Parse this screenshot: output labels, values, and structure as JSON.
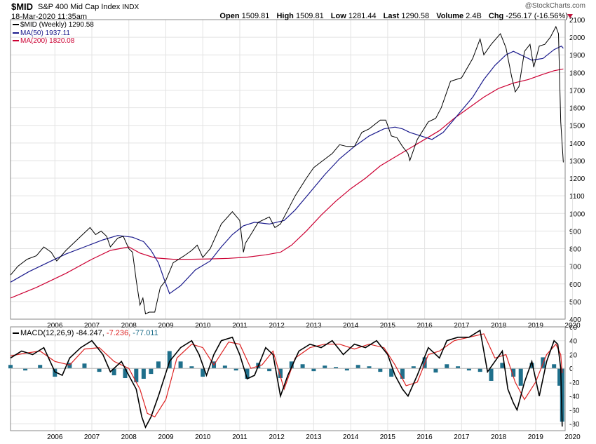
{
  "header": {
    "symbol": "$MID",
    "name": "S&P 400 Mid Cap Index",
    "exchange": "INDX",
    "date": "18-Mar-2020 11:35am",
    "brand": "@StockCharts.com",
    "open_label": "Open",
    "open": "1509.81",
    "high_label": "High",
    "high": "1509.81",
    "low_label": "Low",
    "low": "1281.44",
    "last_label": "Last",
    "last": "1290.58",
    "volume_label": "Volume",
    "volume": "2.4B",
    "chg_label": "Chg",
    "chg": "-256.17 (-16.56%)"
  },
  "legend": {
    "price": "$MID (Weekly) 1290.58",
    "ma50_label": "MA(50)",
    "ma50": "1937.11",
    "ma200_label": "MA(200)",
    "ma200": "1820.08",
    "macd_label": "MACD(12,26,9)",
    "macd_value": "-84.247,",
    "signal_value": "-7.236,",
    "hist_value": "-77.011"
  },
  "colors": {
    "price": "#000000",
    "ma50": "#1a1a8c",
    "ma200": "#cc0033",
    "macd": "#000000",
    "signal": "#dd2222",
    "hist": "#1f6f8b",
    "grid": "#e3e3e3",
    "border": "#888888"
  },
  "chart_data": [
    {
      "type": "line",
      "title": "$MID S&P 400 Mid Cap Index",
      "xlabel": "",
      "ylabel": "",
      "ylim": [
        400,
        2100
      ],
      "yticks": [
        400,
        500,
        600,
        700,
        800,
        900,
        1000,
        1100,
        1200,
        1300,
        1400,
        1500,
        1600,
        1700,
        1800,
        1900,
        2000,
        2100
      ],
      "xlim": [
        2005.3,
        2020.3
      ],
      "xticks": [
        "2006",
        "2007",
        "2008",
        "2009",
        "2010",
        "2011",
        "2012",
        "2013",
        "2014",
        "2015",
        "2016",
        "2017",
        "2018",
        "2019",
        "2020"
      ],
      "series": [
        {
          "name": "$MID (Weekly)",
          "x": [
            2005.3,
            2005.5,
            2005.75,
            2006.0,
            2006.2,
            2006.4,
            2006.55,
            2006.8,
            2007.0,
            2007.2,
            2007.45,
            2007.6,
            2007.75,
            2007.9,
            2008.0,
            2008.2,
            2008.35,
            2008.5,
            2008.6,
            2008.7,
            2008.8,
            2008.88,
            2008.95,
            2009.05,
            2009.15,
            2009.2,
            2009.35,
            2009.5,
            2009.7,
            2010.0,
            2010.2,
            2010.35,
            2010.5,
            2010.7,
            2011.0,
            2011.3,
            2011.5,
            2011.6,
            2011.65,
            2011.8,
            2012.0,
            2012.3,
            2012.45,
            2012.6,
            2012.75,
            2013.0,
            2013.3,
            2013.5,
            2013.75,
            2014.0,
            2014.2,
            2014.4,
            2014.6,
            2014.8,
            2015.0,
            2015.3,
            2015.45,
            2015.6,
            2015.75,
            2015.9,
            2016.05,
            2016.1,
            2016.3,
            2016.6,
            2016.8,
            2016.95,
            2017.2,
            2017.5,
            2017.8,
            2018.0,
            2018.1,
            2018.3,
            2018.55,
            2018.7,
            2018.85,
            2018.95,
            2019.05,
            2019.2,
            2019.35,
            2019.45,
            2019.6,
            2019.75,
            2019.9,
            2020.05,
            2020.12,
            2020.18,
            2020.25
          ],
          "values": [
            650,
            700,
            740,
            760,
            810,
            780,
            730,
            790,
            830,
            870,
            920,
            880,
            900,
            870,
            810,
            860,
            870,
            800,
            780,
            620,
            480,
            520,
            430,
            440,
            440,
            440,
            580,
            620,
            720,
            760,
            790,
            820,
            750,
            800,
            940,
            1010,
            960,
            780,
            830,
            880,
            950,
            980,
            920,
            940,
            1000,
            1100,
            1200,
            1260,
            1300,
            1340,
            1390,
            1380,
            1380,
            1460,
            1480,
            1530,
            1530,
            1440,
            1430,
            1380,
            1340,
            1300,
            1420,
            1520,
            1540,
            1600,
            1750,
            1770,
            1880,
            1990,
            1900,
            1960,
            2020,
            1940,
            1780,
            1690,
            1720,
            1920,
            1960,
            1830,
            1950,
            1960,
            2000,
            2060,
            2020,
            1520,
            1290
          ]
        },
        {
          "name": "MA(50)",
          "x": [
            2005.3,
            2005.8,
            2006.3,
            2006.8,
            2007.3,
            2007.8,
            2008.2,
            2008.6,
            2008.9,
            2009.1,
            2009.3,
            2009.45,
            2009.6,
            2009.9,
            2010.3,
            2010.7,
            2011.0,
            2011.3,
            2011.6,
            2011.9,
            2012.3,
            2012.7,
            2013.0,
            2013.4,
            2013.8,
            2014.2,
            2014.6,
            2015.0,
            2015.4,
            2015.7,
            2015.9,
            2016.1,
            2016.4,
            2016.7,
            2017.0,
            2017.4,
            2017.8,
            2018.1,
            2018.4,
            2018.7,
            2018.9,
            2019.1,
            2019.4,
            2019.7,
            2020.0,
            2020.2,
            2020.25
          ],
          "values": [
            610,
            670,
            720,
            770,
            810,
            850,
            875,
            865,
            840,
            790,
            720,
            630,
            545,
            590,
            680,
            730,
            810,
            880,
            930,
            950,
            940,
            960,
            1020,
            1120,
            1220,
            1310,
            1380,
            1440,
            1480,
            1490,
            1480,
            1460,
            1440,
            1420,
            1460,
            1560,
            1660,
            1760,
            1840,
            1900,
            1920,
            1900,
            1870,
            1880,
            1930,
            1950,
            1937
          ]
        },
        {
          "name": "MA(200)",
          "x": [
            2005.3,
            2006.0,
            2006.8,
            2007.5,
            2008.0,
            2008.5,
            2008.8,
            2009.2,
            2009.7,
            2010.2,
            2010.7,
            2011.2,
            2011.7,
            2012.2,
            2012.6,
            2012.9,
            2013.3,
            2013.7,
            2014.1,
            2014.5,
            2014.9,
            2015.3,
            2015.7,
            2016.1,
            2016.5,
            2016.9,
            2017.3,
            2017.7,
            2018.1,
            2018.5,
            2018.9,
            2019.3,
            2019.7,
            2020.0,
            2020.25
          ],
          "values": [
            520,
            580,
            660,
            740,
            790,
            810,
            775,
            748,
            740,
            740,
            742,
            745,
            752,
            765,
            780,
            820,
            900,
            990,
            1070,
            1140,
            1200,
            1270,
            1320,
            1370,
            1420,
            1470,
            1540,
            1600,
            1660,
            1710,
            1740,
            1760,
            1790,
            1810,
            1820
          ]
        }
      ]
    },
    {
      "type": "line",
      "title": "MACD(12,26,9)",
      "ylim": [
        -90,
        60
      ],
      "yticks": [
        -80,
        -60,
        -40,
        -20,
        0,
        20,
        40,
        60
      ],
      "xlim": [
        2005.3,
        2020.3
      ],
      "xticks": [
        "2006",
        "2007",
        "2008",
        "2009",
        "2010",
        "2011",
        "2012",
        "2013",
        "2014",
        "2015",
        "2016",
        "2017",
        "2018",
        "2019",
        "2020"
      ],
      "series": [
        {
          "name": "MACD",
          "x": [
            2005.3,
            2005.6,
            2005.9,
            2006.2,
            2006.5,
            2006.7,
            2006.9,
            2007.2,
            2007.5,
            2007.8,
            2008.0,
            2008.3,
            2008.5,
            2008.7,
            2008.85,
            2008.95,
            2009.1,
            2009.3,
            2009.6,
            2009.9,
            2010.2,
            2010.4,
            2010.6,
            2010.8,
            2011.0,
            2011.3,
            2011.5,
            2011.7,
            2011.9,
            2012.2,
            2012.4,
            2012.6,
            2012.8,
            2013.1,
            2013.4,
            2013.7,
            2014.0,
            2014.3,
            2014.6,
            2014.9,
            2015.2,
            2015.5,
            2015.7,
            2015.9,
            2016.05,
            2016.3,
            2016.6,
            2016.9,
            2017.1,
            2017.4,
            2017.7,
            2018.0,
            2018.2,
            2018.4,
            2018.6,
            2018.75,
            2018.9,
            2019.0,
            2019.2,
            2019.4,
            2019.6,
            2019.8,
            2020.0,
            2020.1,
            2020.18,
            2020.22
          ],
          "values": [
            15,
            25,
            20,
            30,
            -5,
            -10,
            15,
            30,
            40,
            20,
            -5,
            10,
            -10,
            -30,
            -70,
            -85,
            -70,
            -40,
            10,
            30,
            40,
            20,
            -10,
            20,
            40,
            45,
            20,
            -15,
            -10,
            30,
            20,
            -40,
            -10,
            25,
            35,
            30,
            40,
            20,
            35,
            30,
            40,
            20,
            -10,
            -30,
            -40,
            -10,
            30,
            15,
            40,
            45,
            45,
            55,
            -5,
            10,
            25,
            -30,
            -50,
            -60,
            -20,
            10,
            -40,
            10,
            40,
            35,
            0,
            -84
          ]
        },
        {
          "name": "Signal",
          "x": [
            2005.3,
            2005.7,
            2006.1,
            2006.5,
            2006.9,
            2007.3,
            2007.7,
            2008.1,
            2008.5,
            2008.8,
            2009.0,
            2009.2,
            2009.5,
            2009.8,
            2010.2,
            2010.5,
            2010.8,
            2011.2,
            2011.5,
            2011.8,
            2012.1,
            2012.4,
            2012.7,
            2013.0,
            2013.4,
            2013.8,
            2014.2,
            2014.6,
            2015.0,
            2015.4,
            2015.7,
            2016.0,
            2016.3,
            2016.6,
            2016.9,
            2017.3,
            2017.7,
            2018.1,
            2018.4,
            2018.7,
            2018.95,
            2019.2,
            2019.5,
            2019.8,
            2020.05,
            2020.18,
            2020.22
          ],
          "values": [
            18,
            22,
            25,
            10,
            5,
            28,
            30,
            10,
            0,
            -30,
            -65,
            -70,
            -45,
            15,
            35,
            30,
            5,
            38,
            35,
            0,
            5,
            25,
            -30,
            15,
            30,
            35,
            35,
            28,
            35,
            30,
            5,
            -25,
            -20,
            20,
            25,
            40,
            45,
            50,
            15,
            20,
            -20,
            -45,
            -20,
            20,
            35,
            20,
            -7
          ]
        },
        {
          "name": "Histogram",
          "x": [
            2005.3,
            2005.7,
            2006.1,
            2006.5,
            2006.9,
            2007.3,
            2007.7,
            2008.1,
            2008.4,
            2008.7,
            2008.9,
            2009.1,
            2009.3,
            2009.6,
            2009.9,
            2010.2,
            2010.5,
            2010.8,
            2011.1,
            2011.4,
            2011.7,
            2012.0,
            2012.3,
            2012.6,
            2012.9,
            2013.2,
            2013.5,
            2013.8,
            2014.1,
            2014.4,
            2014.7,
            2015.0,
            2015.3,
            2015.6,
            2015.9,
            2016.2,
            2016.5,
            2016.8,
            2017.1,
            2017.4,
            2017.7,
            2018.0,
            2018.3,
            2018.6,
            2018.9,
            2019.1,
            2019.4,
            2019.7,
            2020.0,
            2020.15,
            2020.22
          ],
          "values": [
            5,
            -3,
            5,
            -12,
            8,
            7,
            -5,
            -10,
            -14,
            -20,
            -15,
            -8,
            10,
            25,
            10,
            3,
            -12,
            10,
            4,
            -3,
            -15,
            8,
            -4,
            -14,
            10,
            6,
            -4,
            4,
            2,
            -3,
            5,
            3,
            -5,
            -12,
            -15,
            3,
            16,
            -6,
            6,
            3,
            -3,
            -5,
            -18,
            8,
            -12,
            -25,
            8,
            16,
            6,
            -25,
            -77
          ]
        }
      ]
    }
  ]
}
